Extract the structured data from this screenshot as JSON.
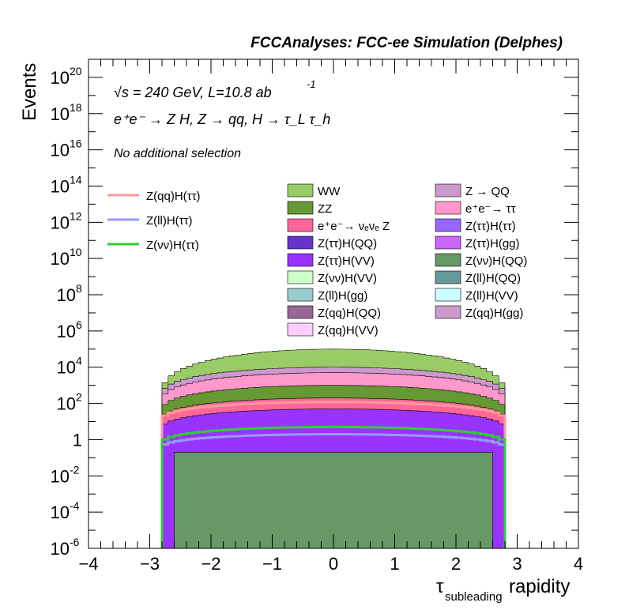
{
  "chart_data": {
    "type": "histogram-stacked",
    "title": "FCCAnalyses: FCC-ee Simulation (Delphes)",
    "xlabel": {
      "main": "τ",
      "sub": "subleading",
      "rest": " rapidity"
    },
    "ylabel": "Events",
    "xlim": [
      -4,
      4
    ],
    "ylim": [
      1e-06,
      1e+21
    ],
    "yscale": "log",
    "x_ticks": [
      "−4",
      "−3",
      "−2",
      "−1",
      "0",
      "1",
      "2",
      "3",
      "4"
    ],
    "y_ticks": [
      {
        "base": "10",
        "exp": "20"
      },
      {
        "base": "10",
        "exp": "18"
      },
      {
        "base": "10",
        "exp": "16"
      },
      {
        "base": "10",
        "exp": "14"
      },
      {
        "base": "10",
        "exp": "12"
      },
      {
        "base": "10",
        "exp": "10"
      },
      {
        "base": "10",
        "exp": "8"
      },
      {
        "base": "10",
        "exp": "6"
      },
      {
        "base": "10",
        "exp": "4"
      },
      {
        "base": "10",
        "exp": "2"
      },
      {
        "base": "1",
        "exp": ""
      },
      {
        "base": "10",
        "exp": "-2"
      },
      {
        "base": "10",
        "exp": "-4"
      },
      {
        "base": "10",
        "exp": "-6"
      }
    ],
    "annotations": {
      "energy": "√s = 240 GeV, L=10.8 ab",
      "lumi_exp": "-1",
      "process": "e⁺e⁻ → Z H, Z → qq, H → τ_L τ_h",
      "selection": "No additional selection"
    },
    "signal_legend": [
      {
        "name": "Z(qq)H(ττ)",
        "color": "#ff9999"
      },
      {
        "name": "Z(ll)H(ττ)",
        "color": "#9999ff"
      },
      {
        "name": "Z(νν)H(ττ)",
        "color": "#33cc33"
      }
    ],
    "background_legend": [
      {
        "name": "WW",
        "color": "#99cc66"
      },
      {
        "name": "Z → QQ",
        "color": "#cc99cc"
      },
      {
        "name": "ZZ",
        "color": "#669933"
      },
      {
        "name": "e⁺e⁻→ ττ",
        "color": "#ff99cc"
      },
      {
        "name": "e⁺e⁻→ νₑνₑ Z",
        "color": "#ff6699"
      },
      {
        "name": "Z(ττ)H(ττ)",
        "color": "#9966ff"
      },
      {
        "name": "Z(ττ)H(QQ)",
        "color": "#6633cc"
      },
      {
        "name": "Z(ττ)H(gg)",
        "color": "#cc66ff"
      },
      {
        "name": "Z(ττ)H(VV)",
        "color": "#9933ff"
      },
      {
        "name": "Z(νν)H(QQ)",
        "color": "#669966"
      },
      {
        "name": "Z(νν)H(VV)",
        "color": "#ccffcc"
      },
      {
        "name": "Z(ll)H(QQ)",
        "color": "#669999"
      },
      {
        "name": "Z(ll)H(gg)",
        "color": "#99cccc"
      },
      {
        "name": "Z(ll)H(VV)",
        "color": "#ccffff"
      },
      {
        "name": "Z(qq)H(QQ)",
        "color": "#996699"
      },
      {
        "name": "Z(qq)H(gg)",
        "color": "#cc99cc"
      },
      {
        "name": "Z(qq)H(VV)",
        "color": "#ffccff"
      }
    ],
    "stack_profile": {
      "range": [
        -2.8,
        2.8
      ],
      "WW": {
        "edge": 200.0,
        "center": 100000.0
      },
      "Z_QQ": {
        "edge": 200.0,
        "center": 10000.0
      },
      "ee_tautau": {
        "edge": 100.0,
        "center": 5000.0
      },
      "ZZ": {
        "edge": 30.0,
        "center": 1000.0
      },
      "ee_nunuZ": {
        "edge": 10.0,
        "center": 200.0
      },
      "higgs_stack": {
        "edge": 3,
        "center": 50.0
      }
    },
    "signal_curves": {
      "Z(qq)H(ττ)": {
        "edge": 10.0,
        "center": 120.0
      },
      "Z(ll)H(ττ)": {
        "edge": 0.3,
        "center": 2
      },
      "Z(νν)H(ττ)": {
        "edge": 0.5,
        "center": 5
      }
    }
  }
}
